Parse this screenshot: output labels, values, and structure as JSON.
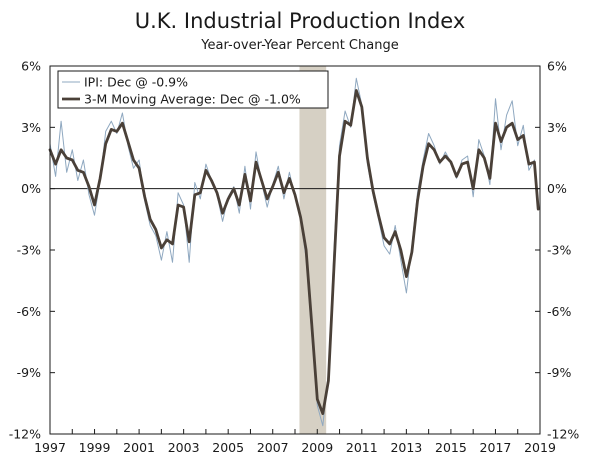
{
  "chart_data": {
    "type": "line",
    "title": "U.K. Industrial Production Index",
    "subtitle": "Year-over-Year Percent Change",
    "xlabel": "",
    "ylabel": "",
    "xlim": [
      1997,
      2019
    ],
    "ylim": [
      -12,
      6
    ],
    "y_ticks": [
      6,
      3,
      0,
      -3,
      -6,
      -9,
      -12
    ],
    "y_tick_labels": [
      "6%",
      "3%",
      "0%",
      "-3%",
      "-6%",
      "-9%",
      "-12%"
    ],
    "x_ticks": [
      1997,
      1999,
      2001,
      2003,
      2005,
      2007,
      2009,
      2011,
      2013,
      2015,
      2017,
      2019
    ],
    "x_tick_labels": [
      "1997",
      "1999",
      "2001",
      "2003",
      "2005",
      "2007",
      "2009",
      "2011",
      "2013",
      "2015",
      "2017",
      "2019"
    ],
    "recession": {
      "start": 2008.2,
      "end": 2009.4,
      "color": "#d6d0c4"
    },
    "series": [
      {
        "name": "IPI: Dec @ -0.9%",
        "color": "#8fa8c0",
        "width": 1,
        "x": [
          1997.0,
          1997.25,
          1997.5,
          1997.75,
          1998.0,
          1998.25,
          1998.5,
          1998.75,
          1999.0,
          1999.25,
          1999.5,
          1999.75,
          2000.0,
          2000.25,
          2000.5,
          2000.75,
          2001.0,
          2001.25,
          2001.5,
          2001.75,
          2002.0,
          2002.25,
          2002.5,
          2002.75,
          2003.0,
          2003.25,
          2003.5,
          2003.75,
          2004.0,
          2004.25,
          2004.5,
          2004.75,
          2005.0,
          2005.25,
          2005.5,
          2005.75,
          2006.0,
          2006.25,
          2006.5,
          2006.75,
          2007.0,
          2007.25,
          2007.5,
          2007.75,
          2008.0,
          2008.25,
          2008.5,
          2008.75,
          2009.0,
          2009.25,
          2009.5,
          2009.75,
          2010.0,
          2010.25,
          2010.5,
          2010.75,
          2011.0,
          2011.25,
          2011.5,
          2011.75,
          2012.0,
          2012.25,
          2012.5,
          2012.75,
          2013.0,
          2013.25,
          2013.5,
          2013.75,
          2014.0,
          2014.25,
          2014.5,
          2014.75,
          2015.0,
          2015.25,
          2015.5,
          2015.75,
          2016.0,
          2016.25,
          2016.5,
          2016.75,
          2017.0,
          2017.25,
          2017.5,
          2017.75,
          2018.0,
          2018.25,
          2018.5,
          2018.75,
          2018.92
        ],
        "values": [
          2.2,
          0.6,
          3.3,
          0.8,
          1.9,
          0.4,
          1.4,
          -0.3,
          -1.3,
          0.4,
          2.8,
          3.3,
          2.7,
          3.7,
          2.1,
          1.0,
          1.4,
          -0.6,
          -1.8,
          -2.3,
          -3.5,
          -2.1,
          -3.6,
          -0.2,
          -0.8,
          -3.6,
          0.3,
          -0.5,
          1.2,
          0.4,
          -0.3,
          -1.6,
          -0.4,
          0.1,
          -1.2,
          1.1,
          -1.0,
          1.8,
          0.3,
          -0.9,
          0.2,
          1.1,
          -0.5,
          0.8,
          -0.4,
          -1.5,
          -3.4,
          -7.1,
          -10.6,
          -11.6,
          -9.0,
          -3.0,
          2.1,
          3.8,
          3.0,
          5.4,
          4.1,
          1.2,
          -0.3,
          -1.5,
          -2.8,
          -3.2,
          -1.8,
          -3.5,
          -5.1,
          -2.8,
          -0.2,
          1.4,
          2.7,
          2.1,
          1.2,
          1.8,
          1.3,
          0.5,
          1.4,
          1.6,
          -0.4,
          2.4,
          1.6,
          0.2,
          4.4,
          1.9,
          3.6,
          4.3,
          2.1,
          3.1,
          0.9,
          1.4,
          -0.9
        ]
      },
      {
        "name": "3-M Moving Average: Dec @ -1.0%",
        "color": "#4a4038",
        "width": 2.8,
        "x": [
          1997.0,
          1997.25,
          1997.5,
          1997.75,
          1998.0,
          1998.25,
          1998.5,
          1998.75,
          1999.0,
          1999.25,
          1999.5,
          1999.75,
          2000.0,
          2000.25,
          2000.5,
          2000.75,
          2001.0,
          2001.25,
          2001.5,
          2001.75,
          2002.0,
          2002.25,
          2002.5,
          2002.75,
          2003.0,
          2003.25,
          2003.5,
          2003.75,
          2004.0,
          2004.25,
          2004.5,
          2004.75,
          2005.0,
          2005.25,
          2005.5,
          2005.75,
          2006.0,
          2006.25,
          2006.5,
          2006.75,
          2007.0,
          2007.25,
          2007.5,
          2007.75,
          2008.0,
          2008.25,
          2008.5,
          2008.75,
          2009.0,
          2009.25,
          2009.5,
          2009.75,
          2010.0,
          2010.25,
          2010.5,
          2010.75,
          2011.0,
          2011.25,
          2011.5,
          2011.75,
          2012.0,
          2012.25,
          2012.5,
          2012.75,
          2013.0,
          2013.25,
          2013.5,
          2013.75,
          2014.0,
          2014.25,
          2014.5,
          2014.75,
          2015.0,
          2015.25,
          2015.5,
          2015.75,
          2016.0,
          2016.25,
          2016.5,
          2016.75,
          2017.0,
          2017.25,
          2017.5,
          2017.75,
          2018.0,
          2018.25,
          2018.5,
          2018.75,
          2018.92
        ],
        "values": [
          1.9,
          1.2,
          1.9,
          1.5,
          1.4,
          0.9,
          0.8,
          0.1,
          -0.8,
          0.5,
          2.2,
          2.9,
          2.8,
          3.2,
          2.3,
          1.4,
          1.0,
          -0.4,
          -1.5,
          -2.0,
          -2.9,
          -2.5,
          -2.7,
          -0.8,
          -0.9,
          -2.6,
          -0.3,
          -0.2,
          0.9,
          0.4,
          -0.2,
          -1.2,
          -0.5,
          0.0,
          -0.8,
          0.7,
          -0.6,
          1.3,
          0.4,
          -0.5,
          0.1,
          0.8,
          -0.2,
          0.5,
          -0.3,
          -1.4,
          -3.0,
          -6.6,
          -10.3,
          -11.0,
          -9.4,
          -3.8,
          1.6,
          3.3,
          3.1,
          4.8,
          4.0,
          1.5,
          -0.1,
          -1.3,
          -2.4,
          -2.7,
          -2.1,
          -3.0,
          -4.3,
          -3.1,
          -0.6,
          1.1,
          2.2,
          1.9,
          1.3,
          1.6,
          1.3,
          0.6,
          1.2,
          1.3,
          0.0,
          1.9,
          1.5,
          0.5,
          3.2,
          2.3,
          3.0,
          3.2,
          2.4,
          2.6,
          1.2,
          1.3,
          -1.0
        ]
      }
    ],
    "legend": {
      "placement": "top-left",
      "entries": [
        "IPI: Dec @ -0.9%",
        "3-M Moving Average: Dec @ -1.0%"
      ]
    }
  }
}
